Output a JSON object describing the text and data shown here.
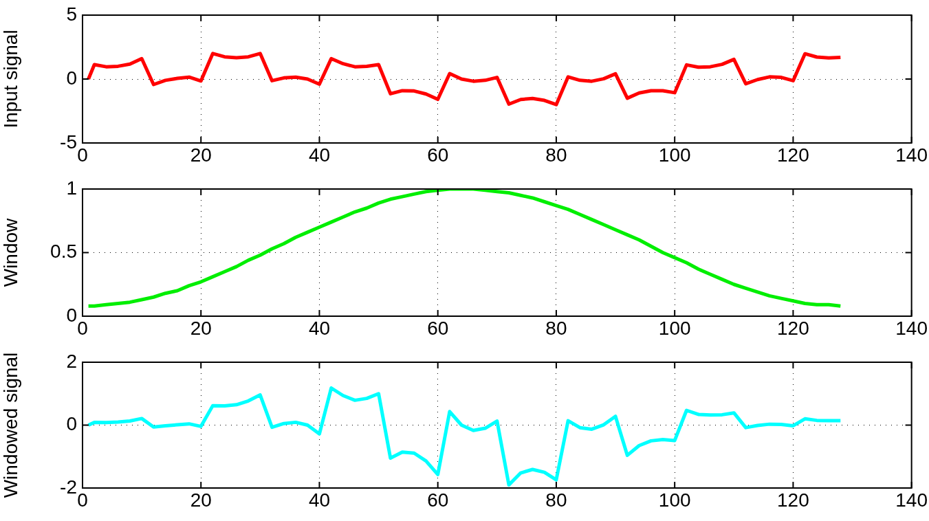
{
  "chart_data": [
    {
      "type": "line",
      "ylabel": "Input signal",
      "x": [
        1,
        2,
        4,
        6,
        8,
        10,
        12,
        14,
        16,
        18,
        20,
        22,
        24,
        26,
        28,
        30,
        32,
        34,
        36,
        38,
        40,
        42,
        44,
        46,
        48,
        50,
        52,
        54,
        56,
        58,
        60,
        62,
        64,
        66,
        68,
        70,
        72,
        74,
        76,
        78,
        80,
        82,
        84,
        86,
        88,
        90,
        92,
        94,
        96,
        98,
        100,
        102,
        104,
        106,
        108,
        110,
        112,
        114,
        116,
        118,
        120,
        122,
        124,
        126,
        128
      ],
      "xlim": [
        0,
        140
      ],
      "xticks": [
        0,
        20,
        40,
        60,
        80,
        100,
        120,
        140
      ],
      "ylim": [
        -5,
        5
      ],
      "yticks": [
        -5,
        0,
        5
      ],
      "grid": true,
      "legend": false,
      "marker": "none",
      "line_style": "solid",
      "series": [
        {
          "color": "#ff0000",
          "values": [
            0,
            1.13,
            0.96,
            1.0,
            1.17,
            1.6,
            -0.43,
            -0.1,
            0.05,
            0.15,
            -0.15,
            2.0,
            1.74,
            1.67,
            1.74,
            2.0,
            -0.13,
            0.09,
            0.15,
            0,
            -0.4,
            1.6,
            1.2,
            0.96,
            1.0,
            1.13,
            -1.15,
            -0.91,
            -0.93,
            -1.17,
            -1.59,
            0.43,
            0,
            -0.17,
            -0.1,
            0.13,
            -1.96,
            -1.6,
            -1.52,
            -1.67,
            -2.0,
            0.17,
            -0.1,
            -0.17,
            0.02,
            0.41,
            -1.5,
            -1.09,
            -0.91,
            -0.91,
            -1.07,
            1.11,
            0.93,
            0.96,
            1.15,
            1.54,
            -0.37,
            -0.04,
            0.17,
            0.13,
            -0.13,
            1.98,
            1.72,
            1.65,
            1.7
          ]
        }
      ]
    },
    {
      "type": "line",
      "ylabel": "Window",
      "x": [
        1,
        2,
        4,
        6,
        8,
        10,
        12,
        14,
        16,
        18,
        20,
        22,
        24,
        26,
        28,
        30,
        32,
        34,
        36,
        38,
        40,
        42,
        44,
        46,
        48,
        50,
        52,
        54,
        56,
        58,
        60,
        62,
        64,
        66,
        68,
        70,
        72,
        74,
        76,
        78,
        80,
        82,
        84,
        86,
        88,
        90,
        92,
        94,
        96,
        98,
        100,
        102,
        104,
        106,
        108,
        110,
        112,
        114,
        116,
        118,
        120,
        122,
        124,
        126,
        128
      ],
      "xlim": [
        0,
        140
      ],
      "xticks": [
        0,
        20,
        40,
        60,
        80,
        100,
        120,
        140
      ],
      "ylim": [
        0,
        1
      ],
      "yticks": [
        0,
        0.5,
        1
      ],
      "grid": true,
      "legend": false,
      "marker": "none",
      "line_style": "solid",
      "series": [
        {
          "color": "#00ee00",
          "values": [
            0.08,
            0.08,
            0.09,
            0.1,
            0.11,
            0.13,
            0.15,
            0.18,
            0.2,
            0.24,
            0.27,
            0.31,
            0.35,
            0.39,
            0.44,
            0.48,
            0.53,
            0.57,
            0.62,
            0.66,
            0.7,
            0.74,
            0.78,
            0.82,
            0.85,
            0.89,
            0.92,
            0.94,
            0.96,
            0.98,
            0.99,
            1.0,
            1.0,
            1.0,
            0.99,
            0.98,
            0.97,
            0.95,
            0.93,
            0.9,
            0.87,
            0.84,
            0.8,
            0.76,
            0.72,
            0.68,
            0.64,
            0.6,
            0.55,
            0.5,
            0.46,
            0.42,
            0.37,
            0.33,
            0.29,
            0.25,
            0.22,
            0.19,
            0.16,
            0.14,
            0.12,
            0.1,
            0.09,
            0.09,
            0.08
          ]
        }
      ]
    },
    {
      "type": "line",
      "ylabel": "Windowed signal",
      "x": [
        1,
        2,
        4,
        6,
        8,
        10,
        12,
        14,
        16,
        18,
        20,
        22,
        24,
        26,
        28,
        30,
        32,
        34,
        36,
        38,
        40,
        42,
        44,
        46,
        48,
        50,
        52,
        54,
        56,
        58,
        60,
        62,
        64,
        66,
        68,
        70,
        72,
        74,
        76,
        78,
        80,
        82,
        84,
        86,
        88,
        90,
        92,
        94,
        96,
        98,
        100,
        102,
        104,
        106,
        108,
        110,
        112,
        114,
        116,
        118,
        120,
        122,
        124,
        126,
        128
      ],
      "xlim": [
        0,
        140
      ],
      "xticks": [
        0,
        20,
        40,
        60,
        80,
        100,
        120,
        140
      ],
      "ylim": [
        -2,
        2
      ],
      "yticks": [
        -2,
        0,
        2
      ],
      "grid": true,
      "legend": false,
      "marker": "none",
      "line_style": "solid",
      "series": [
        {
          "color": "#00ffff",
          "values": [
            0,
            0.09,
            0.08,
            0.1,
            0.13,
            0.21,
            -0.06,
            -0.02,
            0.01,
            0.04,
            -0.04,
            0.62,
            0.61,
            0.65,
            0.77,
            0.96,
            -0.07,
            0.05,
            0.09,
            0,
            -0.28,
            1.18,
            0.94,
            0.79,
            0.85,
            1.0,
            -1.05,
            -0.86,
            -0.89,
            -1.14,
            -1.57,
            0.43,
            0,
            -0.17,
            -0.1,
            0.13,
            -1.9,
            -1.52,
            -1.41,
            -1.5,
            -1.74,
            0.14,
            -0.08,
            -0.13,
            0.01,
            0.28,
            -0.96,
            -0.65,
            -0.5,
            -0.46,
            -0.49,
            0.47,
            0.34,
            0.32,
            0.33,
            0.39,
            -0.08,
            -0.01,
            0.03,
            0.02,
            -0.02,
            0.2,
            0.15,
            0.14,
            0.14
          ]
        }
      ]
    }
  ]
}
